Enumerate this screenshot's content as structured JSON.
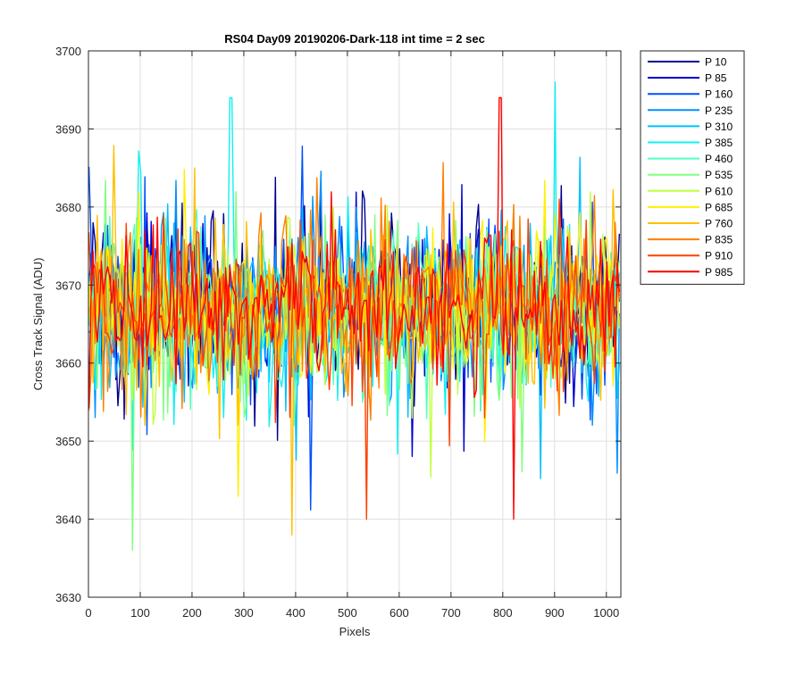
{
  "chart_data": {
    "type": "line",
    "title": "RS04 Day09 20190206-Dark-118 int time = 2 sec",
    "xlabel": "Pixels",
    "ylabel": "Cross Track Signal (ADU)",
    "xlim": [
      0,
      1028
    ],
    "ylim": [
      3630,
      3700
    ],
    "xticks": [
      0,
      100,
      200,
      300,
      400,
      500,
      600,
      700,
      800,
      900,
      1000
    ],
    "yticks": [
      3630,
      3640,
      3650,
      3660,
      3670,
      3680,
      3690,
      3700
    ],
    "grid": true,
    "legend_position": "outside-top-right",
    "x_range": [
      1,
      1028
    ],
    "notable_points": [
      {
        "x": 275,
        "y": 3694,
        "series": "P 385"
      },
      {
        "x": 392,
        "y": 3638,
        "series": "P 760"
      },
      {
        "x": 795,
        "y": 3694,
        "series": "P 985"
      },
      {
        "x": 900,
        "y": 3696,
        "series": "P 385"
      },
      {
        "x": 85,
        "y": 3636,
        "series": "P 535"
      },
      {
        "x": 820,
        "y": 3640,
        "series": "P 985"
      },
      {
        "x": 538,
        "y": 3640,
        "series": "P 910"
      }
    ],
    "series": [
      {
        "name": "P 10",
        "color": "#00008F",
        "mean": 3667,
        "spread": 12,
        "seed": 11
      },
      {
        "name": "P 85",
        "color": "#0000D0",
        "mean": 3667,
        "spread": 12,
        "seed": 23
      },
      {
        "name": "P 160",
        "color": "#0050FF",
        "mean": 3667,
        "spread": 12,
        "seed": 37
      },
      {
        "name": "P 235",
        "color": "#0090FF",
        "mean": 3667,
        "spread": 12,
        "seed": 41
      },
      {
        "name": "P 310",
        "color": "#00C0FF",
        "mean": 3667,
        "spread": 12,
        "seed": 53
      },
      {
        "name": "P 385",
        "color": "#10F0F0",
        "mean": 3667,
        "spread": 12,
        "seed": 67
      },
      {
        "name": "P 460",
        "color": "#50FFC0",
        "mean": 3667,
        "spread": 12,
        "seed": 71
      },
      {
        "name": "P 535",
        "color": "#80FF80",
        "mean": 3667,
        "spread": 12,
        "seed": 83
      },
      {
        "name": "P 610",
        "color": "#C0FF40",
        "mean": 3667,
        "spread": 12,
        "seed": 97
      },
      {
        "name": "P 685",
        "color": "#FFF000",
        "mean": 3667,
        "spread": 12,
        "seed": 101
      },
      {
        "name": "P 760",
        "color": "#FFC000",
        "mean": 3667,
        "spread": 12,
        "seed": 113
      },
      {
        "name": "P 835",
        "color": "#FF8000",
        "mean": 3667,
        "spread": 12,
        "seed": 127
      },
      {
        "name": "P 910",
        "color": "#FF4000",
        "mean": 3667,
        "spread": 11,
        "seed": 131
      },
      {
        "name": "P 985",
        "color": "#FF0000",
        "mean": 3667,
        "spread": 10,
        "seed": 139
      }
    ]
  }
}
